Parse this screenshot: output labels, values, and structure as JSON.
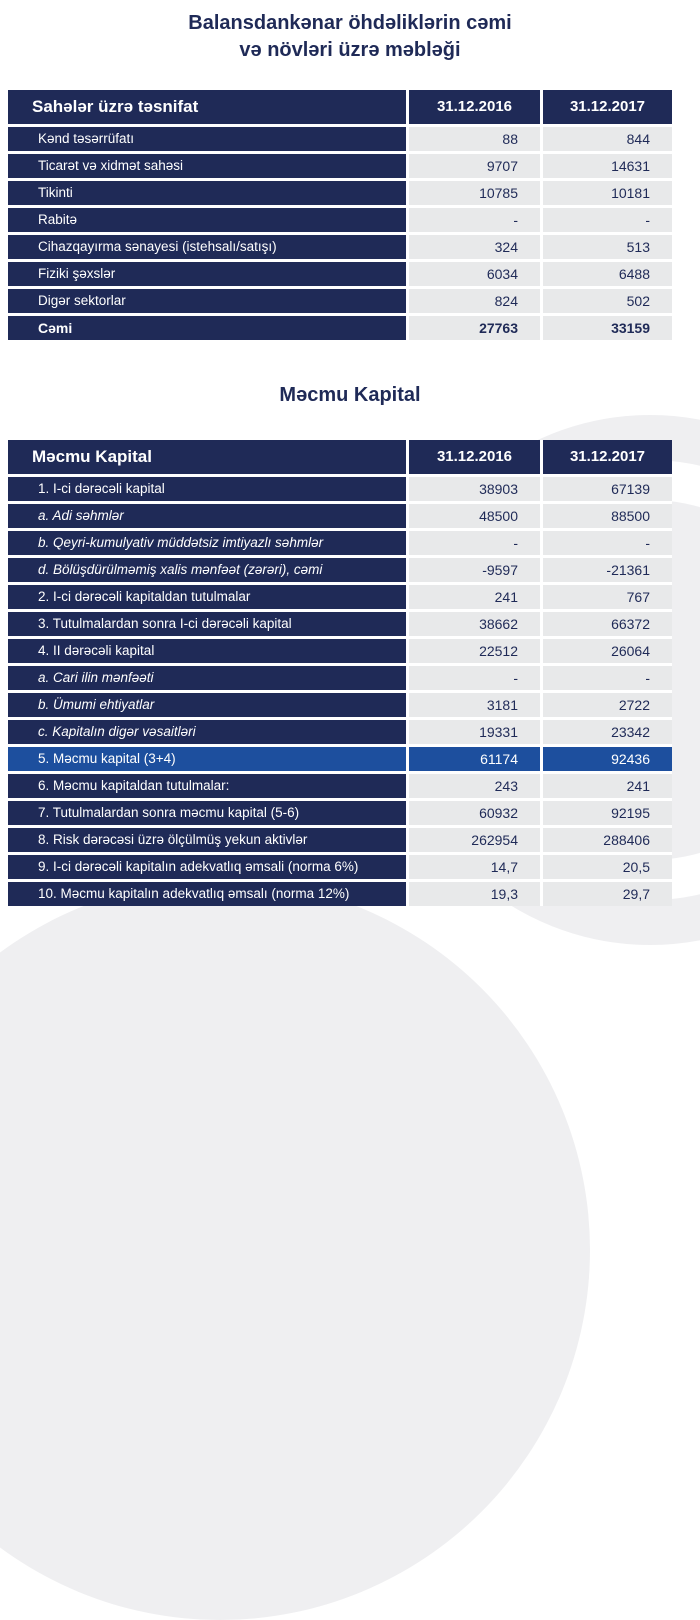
{
  "page": {
    "title_line1": "Balansdankənar öhdəliklərin cəmi",
    "title_line2": "və növləri üzrə məbləği",
    "section2_title": "Məcmu Kapital"
  },
  "colors": {
    "navy": "#1f2a57",
    "highlight_blue": "#1d4f9e",
    "cell_gray": "#e8e9ea",
    "watermark_gray": "#efeff1"
  },
  "table1": {
    "header": {
      "label": "Sahələr üzrə təsnifat",
      "col2016": "31.12.2016",
      "col2017": "31.12.2017"
    },
    "rows": [
      {
        "label": "Kənd təsərrüfatı",
        "v2016": "88",
        "v2017": "844",
        "style": "normal"
      },
      {
        "label": "Ticarət və xidmət sahəsi",
        "v2016": "9707",
        "v2017": "14631",
        "style": "normal"
      },
      {
        "label": "Tikinti",
        "v2016": "10785",
        "v2017": "10181",
        "style": "normal"
      },
      {
        "label": "Rabitə",
        "v2016": "-",
        "v2017": "-",
        "style": "normal"
      },
      {
        "label": "Cihazqayırma sənayesi (istehsalı/satışı)",
        "v2016": "324",
        "v2017": "513",
        "style": "normal"
      },
      {
        "label": "Fiziki şəxslər",
        "v2016": "6034",
        "v2017": "6488",
        "style": "normal"
      },
      {
        "label": "Digər sektorlar",
        "v2016": "824",
        "v2017": "502",
        "style": "normal"
      },
      {
        "label": "Cəmi",
        "v2016": "27763",
        "v2017": "33159",
        "style": "bold"
      }
    ]
  },
  "table2": {
    "header": {
      "label": "Məcmu Kapital",
      "col2016": "31.12.2016",
      "col2017": "31.12.2017"
    },
    "rows": [
      {
        "label": "1. I-ci dərəcəli kapital",
        "v2016": "38903",
        "v2017": "67139",
        "style": "normal"
      },
      {
        "label": "a. Adi səhmlər",
        "v2016": "48500",
        "v2017": "88500",
        "style": "italic"
      },
      {
        "label": "b. Qeyri-kumulyativ müddətsiz imtiyazlı səhmlər",
        "v2016": "-",
        "v2017": "-",
        "style": "italic"
      },
      {
        "label": "d. Bölüşdürülməmiş xalis mənfəət (zərəri), cəmi",
        "v2016": "-9597",
        "v2017": "-21361",
        "style": "italic"
      },
      {
        "label": "2. I-ci dərəcəli kapitaldan tutulmalar",
        "v2016": "241",
        "v2017": "767",
        "style": "normal"
      },
      {
        "label": "3. Tutulmalardan sonra I-ci dərəcəli kapital",
        "v2016": "38662",
        "v2017": "66372",
        "style": "normal"
      },
      {
        "label": "4. II dərəcəli kapital",
        "v2016": "22512",
        "v2017": "26064",
        "style": "normal"
      },
      {
        "label": "a. Cari ilin mənfəəti",
        "v2016": "-",
        "v2017": "-",
        "style": "italic"
      },
      {
        "label": "b. Ümumi ehtiyatlar",
        "v2016": "3181",
        "v2017": "2722",
        "style": "italic"
      },
      {
        "label": "c. Kapitalın digər vəsaitləri",
        "v2016": "19331",
        "v2017": "23342",
        "style": "italic"
      },
      {
        "label": "5. Məcmu kapital (3+4)",
        "v2016": "61174",
        "v2017": "92436",
        "style": "highlight"
      },
      {
        "label": "6. Məcmu kapitaldan tutulmalar:",
        "v2016": "243",
        "v2017": "241",
        "style": "normal"
      },
      {
        "label": "7. Tutulmalardan sonra məcmu kapital (5-6)",
        "v2016": "60932",
        "v2017": "92195",
        "style": "normal"
      },
      {
        "label": "8. Risk dərəcəsi üzrə ölçülmüş yekun aktivlər",
        "v2016": "262954",
        "v2017": "288406",
        "style": "normal"
      },
      {
        "label": "9. I-ci dərəcəli kapitalın adekvatlıq əmsali (norma 6%)",
        "v2016": "14,7",
        "v2017": "20,5",
        "style": "normal"
      },
      {
        "label": "10. Məcmu kapitalın adekvatlıq əmsalı (norma 12%)",
        "v2016": "19,3",
        "v2017": "29,7",
        "style": "normal"
      }
    ]
  }
}
